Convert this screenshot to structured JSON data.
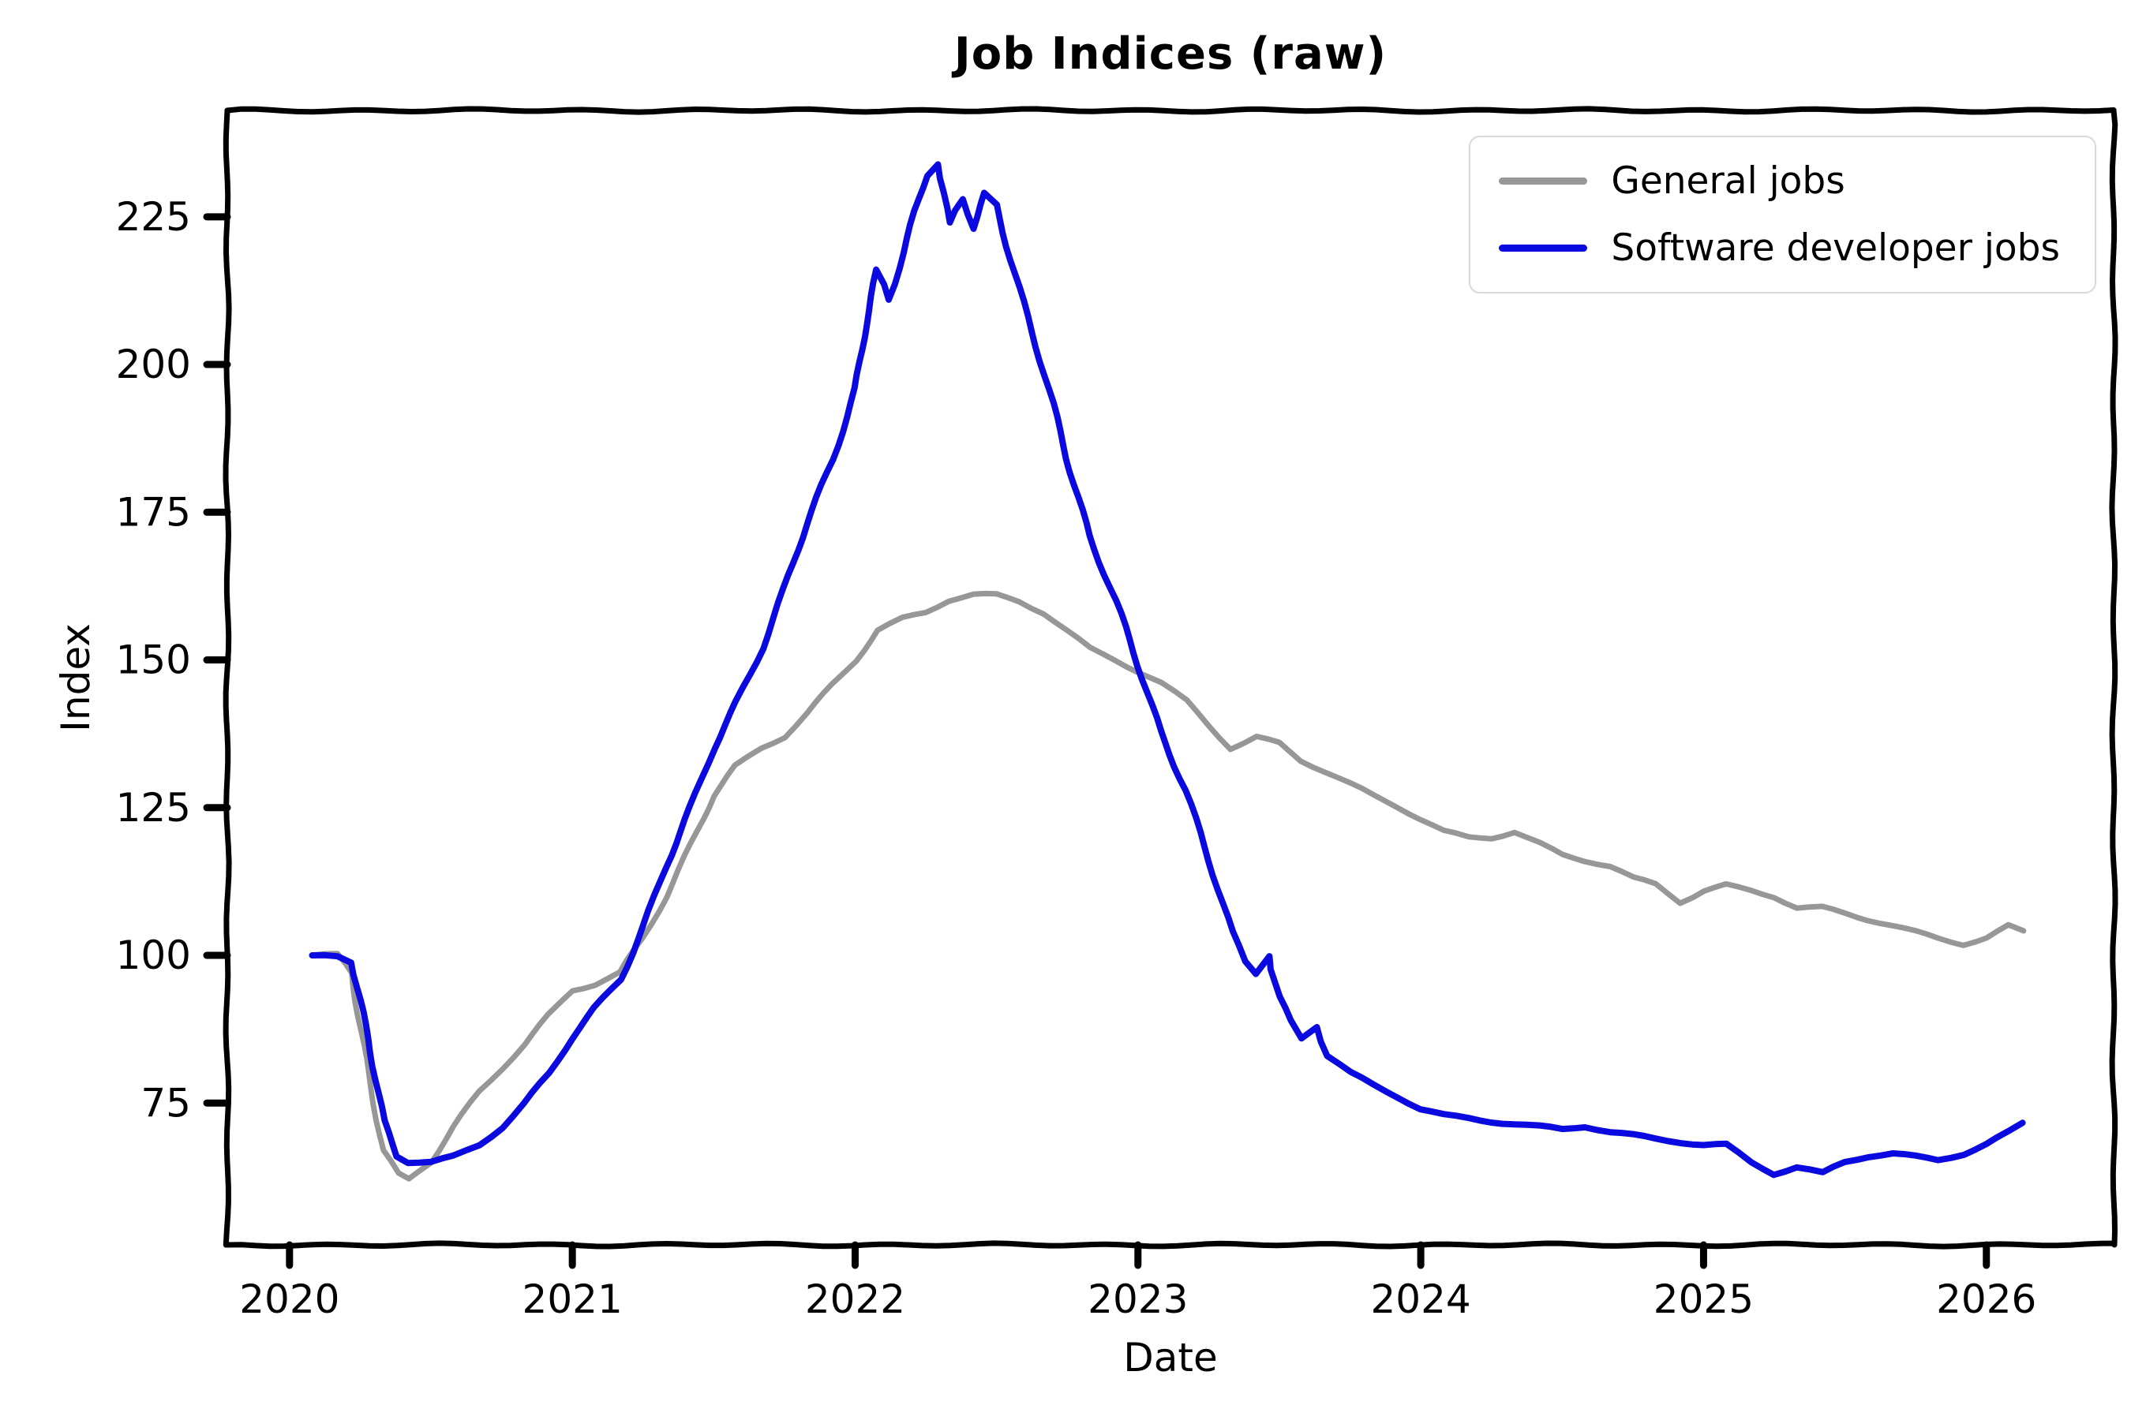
{
  "chart_data": {
    "type": "line",
    "title": "Job Indices (raw)",
    "xlabel": "Date",
    "ylabel": "Index",
    "xlim": [
      2019.78,
      2026.45
    ],
    "ylim": [
      51,
      243
    ],
    "xticks": [
      2020,
      2021,
      2022,
      2023,
      2024,
      2025,
      2026
    ],
    "yticks": [
      75,
      100,
      125,
      150,
      175,
      200,
      225
    ],
    "grid": false,
    "legend_position": "upper right",
    "style": "hand-drawn-xkcd",
    "frame_color": "#000000",
    "series": [
      {
        "name": "General jobs",
        "color": "#979797",
        "linewidth": 7,
        "x": [
          2020.08,
          2020.17,
          2020.22,
          2020.28,
          2020.33,
          2020.38,
          2020.42,
          2020.5,
          2020.58,
          2020.67,
          2020.75,
          2020.83,
          2020.92,
          2021.0,
          2021.08,
          2021.17,
          2021.25,
          2021.33,
          2021.42,
          2021.5,
          2021.58,
          2021.67,
          2021.75,
          2021.83,
          2021.92,
          2022.0,
          2022.08,
          2022.17,
          2022.25,
          2022.33,
          2022.42,
          2022.5,
          2022.58,
          2022.67,
          2022.75,
          2022.83,
          2022.92,
          2023.0,
          2023.08,
          2023.17,
          2023.25,
          2023.33,
          2023.42,
          2023.5,
          2023.58,
          2023.67,
          2023.75,
          2023.83,
          2023.92,
          2024.0,
          2024.08,
          2024.17,
          2024.25,
          2024.33,
          2024.42,
          2024.5,
          2024.58,
          2024.67,
          2024.75,
          2024.83,
          2024.92,
          2025.0,
          2025.08,
          2025.17,
          2025.25,
          2025.33,
          2025.42,
          2025.5,
          2025.58,
          2025.67,
          2025.75,
          2025.83,
          2025.92,
          2026.0,
          2026.08,
          2026.13
        ],
        "y": [
          100,
          100,
          97,
          80,
          67,
          63,
          62,
          65,
          71,
          77,
          81,
          85,
          90,
          94,
          95,
          97,
          103,
          110,
          119,
          127,
          132,
          135,
          137,
          141,
          146,
          150,
          155,
          157,
          158,
          160,
          161,
          161,
          160,
          158,
          155,
          152,
          150,
          148,
          146,
          143,
          139,
          135,
          137,
          136,
          133,
          131,
          129,
          127,
          125,
          123,
          121,
          120,
          120,
          121,
          119,
          117,
          116,
          115,
          113,
          112,
          109,
          111,
          112,
          111,
          110,
          108,
          108,
          107,
          106,
          105,
          104,
          103,
          102,
          103,
          105,
          104
        ]
      },
      {
        "name": "Software developer jobs",
        "color": "#0a0ae0",
        "linewidth": 8,
        "x": [
          2020.08,
          2020.17,
          2020.22,
          2020.28,
          2020.33,
          2020.38,
          2020.42,
          2020.5,
          2020.58,
          2020.67,
          2020.75,
          2020.83,
          2020.92,
          2021.0,
          2021.08,
          2021.17,
          2021.25,
          2021.33,
          2021.42,
          2021.5,
          2021.58,
          2021.67,
          2021.75,
          2021.83,
          2021.92,
          2022.0,
          2022.04,
          2022.08,
          2022.12,
          2022.17,
          2022.21,
          2022.25,
          2022.29,
          2022.33,
          2022.38,
          2022.42,
          2022.46,
          2022.5,
          2022.54,
          2022.58,
          2022.67,
          2022.75,
          2022.83,
          2022.92,
          2023.0,
          2023.08,
          2023.17,
          2023.25,
          2023.33,
          2023.38,
          2023.42,
          2023.46,
          2023.5,
          2023.54,
          2023.58,
          2023.63,
          2023.67,
          2023.75,
          2023.83,
          2023.92,
          2024.0,
          2024.08,
          2024.17,
          2024.25,
          2024.33,
          2024.42,
          2024.5,
          2024.58,
          2024.67,
          2024.75,
          2024.83,
          2024.92,
          2025.0,
          2025.08,
          2025.17,
          2025.25,
          2025.33,
          2025.42,
          2025.5,
          2025.58,
          2025.67,
          2025.75,
          2025.83,
          2025.92,
          2026.0,
          2026.08,
          2026.13
        ],
        "y": [
          100,
          100,
          99,
          86,
          72,
          66,
          65,
          65,
          66,
          68,
          71,
          75,
          80,
          86,
          91,
          96,
          105,
          115,
          125,
          135,
          143,
          152,
          162,
          173,
          184,
          196,
          207,
          216,
          211,
          219,
          226,
          232,
          234,
          224,
          228,
          223,
          229,
          227,
          220,
          213,
          198,
          184,
          171,
          160,
          149,
          138,
          128,
          116,
          104,
          99,
          97,
          100,
          93,
          89,
          86,
          88,
          83,
          80,
          78,
          76,
          74,
          73,
          72.5,
          72,
          71.5,
          71,
          70.5,
          71,
          70,
          69.5,
          69,
          68.5,
          68,
          68,
          65,
          63,
          64,
          63,
          65,
          66,
          66.5,
          66,
          65.5,
          66.5,
          68,
          70,
          71.5
        ]
      }
    ]
  }
}
